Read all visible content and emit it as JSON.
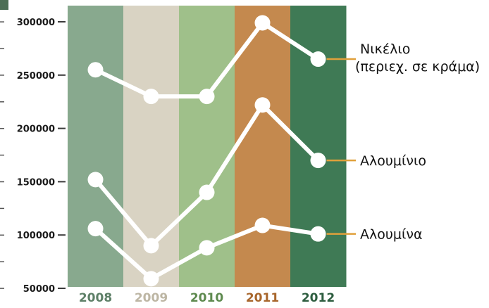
{
  "chart_data": {
    "type": "line",
    "categories": [
      "2008",
      "2009",
      "2010",
      "2011",
      "2012"
    ],
    "y_ticks": [
      50000,
      100000,
      150000,
      200000,
      250000,
      300000
    ],
    "y_tick_labels": [
      "50000",
      "100000",
      "150000",
      "200000",
      "250000",
      "300000"
    ],
    "ylim": [
      50000,
      300000
    ],
    "grid": false,
    "series": [
      {
        "name": "Νικέλιο",
        "name_line2": "(περιεχ. σε κράμα)",
        "values": [
          255000,
          230000,
          230000,
          299000,
          265000
        ]
      },
      {
        "name": "Αλουμίνιο",
        "values": [
          152000,
          90000,
          140000,
          222000,
          170000
        ]
      },
      {
        "name": "Αλουμίνα",
        "values": [
          106000,
          59000,
          88000,
          109000,
          101000
        ]
      }
    ],
    "column_colors": [
      "#88a98e",
      "#d9d3c3",
      "#9fc08a",
      "#c4894e",
      "#3f7a55"
    ],
    "year_label_colors": [
      "#5e8068",
      "#bdb6a4",
      "#5e8a4f",
      "#a8662c",
      "#2d5d3f"
    ],
    "line_color": "#ffffff",
    "leader_color": "#e0a03b"
  }
}
